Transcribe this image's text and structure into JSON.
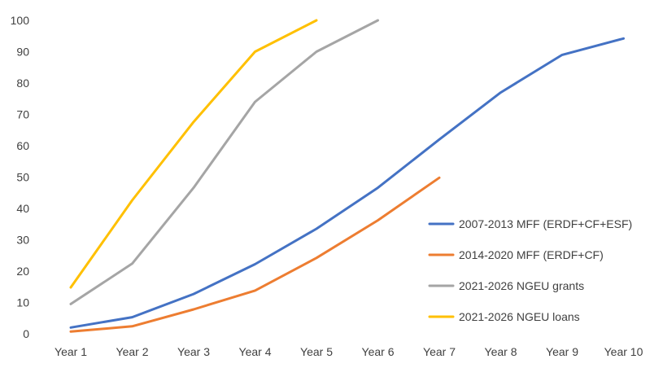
{
  "chart_data": {
    "type": "line",
    "title": "",
    "xlabel": "",
    "ylabel": "",
    "categories": [
      "Year 1",
      "Year 2",
      "Year 3",
      "Year 4",
      "Year 5",
      "Year 6",
      "Year 7",
      "Year 8",
      "Year 9",
      "Year 10"
    ],
    "ylim": [
      0,
      100
    ],
    "yticks": [
      0,
      10,
      20,
      30,
      40,
      50,
      60,
      70,
      80,
      90,
      100
    ],
    "grid": false,
    "legend": "bottom-right",
    "series": [
      {
        "name": "2007-2013 MFF (ERDF+CF+ESF)",
        "color": "#4472C4",
        "values": [
          2,
          5.3,
          12.7,
          22.2,
          33.5,
          46.6,
          62,
          77,
          89,
          94.2
        ]
      },
      {
        "name": "2014-2020 MFF (ERDF+CF)",
        "color": "#ED7D31",
        "values": [
          0.7,
          2.4,
          7.8,
          13.8,
          24.2,
          36.2,
          49.8,
          null,
          null,
          null
        ]
      },
      {
        "name": "2021-2026 NGEU grants",
        "color": "#A5A5A5",
        "values": [
          9.5,
          22.4,
          46.6,
          74,
          90,
          100,
          null,
          null,
          null,
          null
        ]
      },
      {
        "name": "2021-2026 NGEU loans",
        "color": "#FFC000",
        "values": [
          14.8,
          42.6,
          67.6,
          90,
          100,
          null,
          null,
          null,
          null,
          null
        ]
      }
    ]
  }
}
